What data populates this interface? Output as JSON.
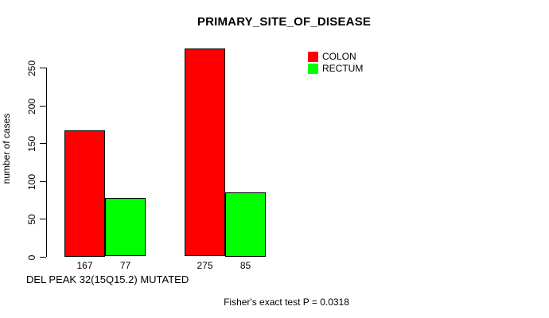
{
  "chart_data": {
    "type": "bar",
    "title": "PRIMARY_SITE_OF_DISEASE",
    "ylabel": "number of cases",
    "xlabel": "DEL PEAK 32(15Q15.2) MUTATED",
    "annotation": "Fisher's exact test P = 0.0318",
    "categories": [
      "",
      ""
    ],
    "series": [
      {
        "name": "COLON",
        "color": "#ff0000",
        "values": [
          167,
          275
        ]
      },
      {
        "name": "RECTUM",
        "color": "#00ff00",
        "values": [
          77,
          85
        ]
      }
    ],
    "bar_value_labels": [
      [
        167,
        275
      ],
      [
        77,
        85
      ]
    ],
    "yticks": [
      0,
      50,
      100,
      150,
      200,
      250
    ],
    "ylim": [
      0,
      280
    ],
    "grid": false,
    "legend_position": "top-right",
    "bar_border_color": "#000000",
    "background_color": "#ffffff"
  }
}
